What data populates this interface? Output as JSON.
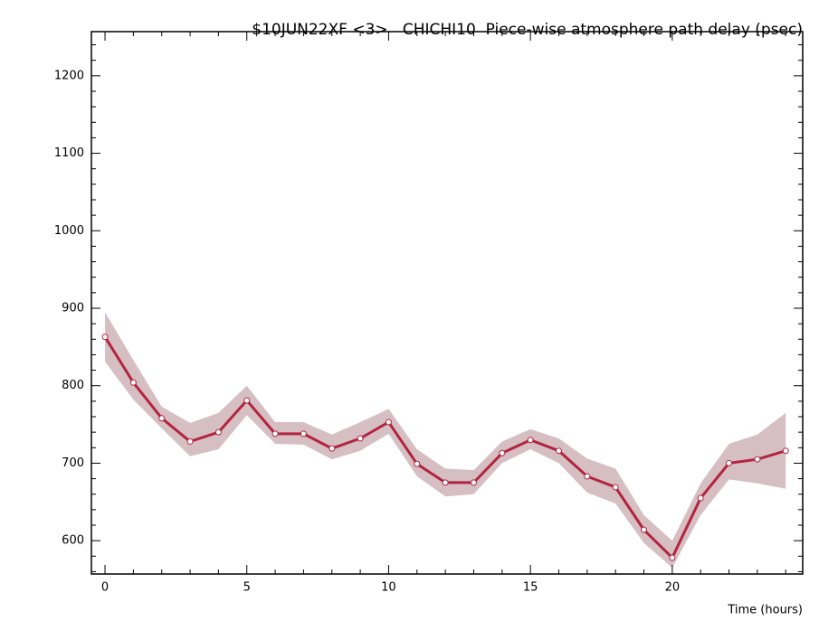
{
  "chart_data": {
    "type": "line",
    "title": "$10JUN22XF <3>   CHICHI10  Piece-wise atmosphere path delay (psec)",
    "x_label": "Time (hours)",
    "x": [
      0,
      1,
      2,
      3,
      4,
      5,
      6,
      7,
      8,
      9,
      10,
      11,
      12,
      13,
      14,
      15,
      16,
      17,
      18,
      19,
      20,
      21,
      22,
      23,
      24
    ],
    "series": [
      {
        "color": "#b3243f",
        "band_color": "#d6bfc3",
        "values": [
          863,
          804,
          758,
          728,
          740,
          781,
          738,
          738,
          719,
          732,
          753,
          699,
          675,
          675,
          713,
          730,
          716,
          683,
          669,
          614,
          578,
          655,
          700,
          705,
          716
        ],
        "upper": [
          895,
          833,
          773,
          752,
          765,
          800,
          753,
          753,
          737,
          753,
          770,
          718,
          693,
          691,
          728,
          744,
          732,
          706,
          693,
          633,
          600,
          674,
          725,
          737,
          765
        ],
        "lower": [
          831,
          782,
          745,
          709,
          718,
          762,
          725,
          724,
          705,
          716,
          738,
          683,
          657,
          660,
          700,
          718,
          700,
          662,
          648,
          597,
          565,
          633,
          679,
          674,
          667
        ]
      }
    ],
    "xlim": [
      -0.48,
      24.6
    ],
    "ylim": [
      557,
      1257
    ],
    "xticks": [
      0,
      5,
      10,
      15,
      20
    ],
    "yticks": [
      600,
      700,
      800,
      900,
      1000,
      1100,
      1200
    ],
    "xminorticks": [
      1,
      2,
      3,
      4,
      6,
      7,
      8,
      9,
      11,
      12,
      13,
      14,
      16,
      17,
      18,
      19,
      21,
      22,
      23,
      24
    ],
    "yminorticks": [
      560,
      580,
      620,
      640,
      660,
      680,
      720,
      740,
      760,
      780,
      820,
      840,
      860,
      880,
      920,
      940,
      960,
      980,
      1020,
      1040,
      1060,
      1080,
      1120,
      1140,
      1160,
      1180,
      1220,
      1240
    ]
  }
}
